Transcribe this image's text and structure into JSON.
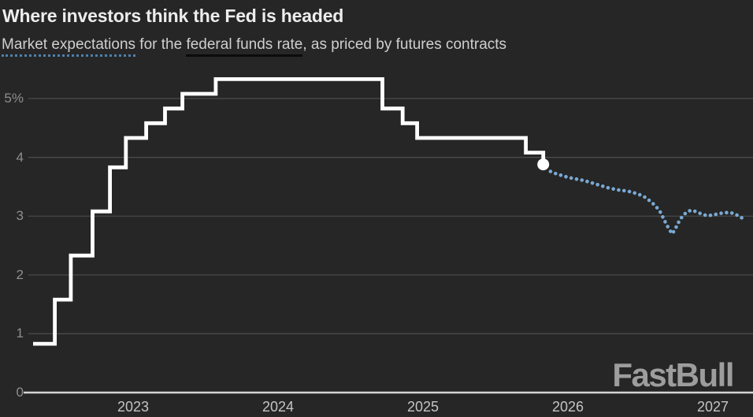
{
  "header": {
    "title": "Where investors think the Fed is headed",
    "subtitle": {
      "dotted_term": "Market expectations",
      "mid": " for the ",
      "solid_term": "federal funds rate",
      "tail": ", as priced by futures contracts"
    }
  },
  "branding": {
    "logo_text": "FastBull"
  },
  "colors": {
    "background": "#262626",
    "title": "#ededed",
    "subtitle": "#cfcfcf",
    "dotted_underline": "#4e81ae",
    "solid_underline": "#0b0b0b",
    "gridline": "#4d4d4d",
    "axis_baseline": "#d4d4d4",
    "y_label": "#8f8f8f",
    "x_label": "#c4c4c4",
    "actual_line": "#ffffff",
    "futures_dots": "#79a9d4",
    "end_marker": "#ffffff",
    "logo": "#9d9d9d"
  },
  "chart_data": {
    "type": "line",
    "title": "Where investors think the Fed is headed",
    "subtitle": "Market expectations for the federal funds rate, as priced by futures contracts",
    "unit": "percent",
    "grid": "horizontal gridlines on",
    "legend": "inline in subtitle (dotted blue = market expectations, solid = federal funds rate)",
    "x_axis": {
      "range": [
        2022.28,
        2027.28
      ],
      "ticks": [
        {
          "label": "2023",
          "value": 2023
        },
        {
          "label": "2024",
          "value": 2024
        },
        {
          "label": "2025",
          "value": 2025
        },
        {
          "label": "2026",
          "value": 2026
        },
        {
          "label": "2027",
          "value": 2027
        }
      ]
    },
    "y_axis": {
      "range": [
        0,
        5.45
      ],
      "ticks": [
        {
          "label": "5%",
          "value": 5
        },
        {
          "label": "4",
          "value": 4
        },
        {
          "label": "3",
          "value": 3
        },
        {
          "label": "2",
          "value": 2
        },
        {
          "label": "1",
          "value": 1
        },
        {
          "label": "0",
          "value": 0
        }
      ]
    },
    "series": [
      {
        "name": "Federal funds rate (actual, step line)",
        "style": "step-solid",
        "color": "#ffffff",
        "points": [
          [
            2022.31,
            0.83
          ],
          [
            2022.46,
            1.58
          ],
          [
            2022.57,
            2.33
          ],
          [
            2022.72,
            3.08
          ],
          [
            2022.84,
            3.83
          ],
          [
            2022.95,
            4.33
          ],
          [
            2023.09,
            4.58
          ],
          [
            2023.22,
            4.83
          ],
          [
            2023.34,
            5.08
          ],
          [
            2023.57,
            5.33
          ],
          [
            2024.72,
            4.83
          ],
          [
            2024.86,
            4.58
          ],
          [
            2024.96,
            4.33
          ],
          [
            2025.71,
            4.08
          ],
          [
            2025.83,
            3.88
          ]
        ]
      },
      {
        "name": "Market expectations (futures, dotted line)",
        "style": "dotted",
        "color": "#79a9d4",
        "points": [
          [
            2025.88,
            3.76
          ],
          [
            2025.92,
            3.72
          ],
          [
            2025.96,
            3.69
          ],
          [
            2026.0,
            3.66
          ],
          [
            2026.04,
            3.64
          ],
          [
            2026.08,
            3.62
          ],
          [
            2026.12,
            3.6
          ],
          [
            2026.16,
            3.57
          ],
          [
            2026.2,
            3.54
          ],
          [
            2026.24,
            3.51
          ],
          [
            2026.28,
            3.48
          ],
          [
            2026.32,
            3.46
          ],
          [
            2026.36,
            3.44
          ],
          [
            2026.4,
            3.43
          ],
          [
            2026.44,
            3.41
          ],
          [
            2026.48,
            3.38
          ],
          [
            2026.52,
            3.34
          ],
          [
            2026.55,
            3.29
          ],
          [
            2026.58,
            3.23
          ],
          [
            2026.61,
            3.16
          ],
          [
            2026.64,
            3.06
          ],
          [
            2026.66,
            2.96
          ],
          [
            2026.68,
            2.86
          ],
          [
            2026.7,
            2.77
          ],
          [
            2026.72,
            2.7
          ],
          [
            2026.74,
            2.78
          ],
          [
            2026.76,
            2.88
          ],
          [
            2026.79,
            3.0
          ],
          [
            2026.82,
            3.07
          ],
          [
            2026.85,
            3.1
          ],
          [
            2026.88,
            3.08
          ],
          [
            2026.91,
            3.05
          ],
          [
            2026.94,
            3.02
          ],
          [
            2026.97,
            3.01
          ],
          [
            2027.0,
            3.02
          ],
          [
            2027.04,
            3.04
          ],
          [
            2027.08,
            3.06
          ],
          [
            2027.12,
            3.06
          ],
          [
            2027.15,
            3.04
          ],
          [
            2027.18,
            3.0
          ],
          [
            2027.2,
            2.97
          ]
        ]
      }
    ],
    "end_marker": {
      "x": 2025.83,
      "y": 3.88
    }
  }
}
